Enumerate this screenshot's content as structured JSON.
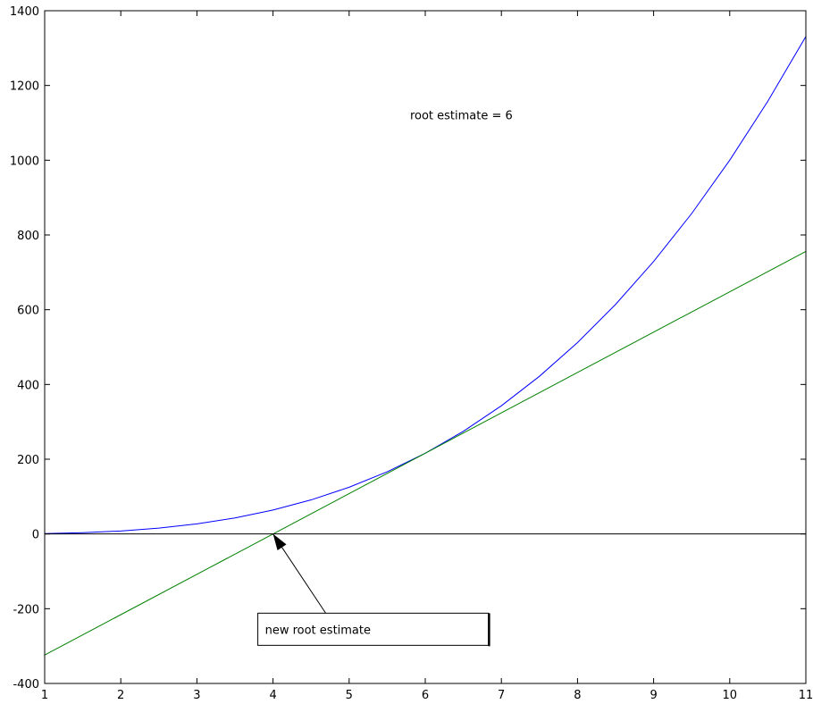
{
  "chart_data": {
    "type": "line",
    "title": "",
    "xlabel": "",
    "ylabel": "",
    "xlim": [
      1,
      11
    ],
    "ylim": [
      -400,
      1400
    ],
    "xticks": [
      1,
      2,
      3,
      4,
      5,
      6,
      7,
      8,
      9,
      10,
      11
    ],
    "yticks": [
      -400,
      -200,
      0,
      200,
      400,
      600,
      800,
      1000,
      1200,
      1400
    ],
    "grid": false,
    "legend": "none",
    "series": [
      {
        "color": "#0000ff",
        "x": [
          1,
          1.5,
          2,
          2.5,
          3,
          3.5,
          4,
          4.5,
          5,
          5.5,
          6,
          6.5,
          7,
          7.5,
          8,
          8.5,
          9,
          9.5,
          10,
          10.5,
          11
        ],
        "y": [
          1,
          3.38,
          8,
          15.63,
          27,
          42.88,
          64,
          91.13,
          125,
          166.38,
          216,
          274.63,
          343,
          421.88,
          512,
          614.13,
          729,
          857.38,
          1000,
          1157.63,
          1331
        ]
      },
      {
        "color": "#008000",
        "x": [
          1,
          11
        ],
        "y": [
          -324,
          756
        ]
      },
      {
        "color": "#000000",
        "x": [
          1,
          11
        ],
        "y": [
          0,
          0
        ]
      }
    ],
    "annotations": [
      {
        "text": "root estimate = 6",
        "x": 5.8,
        "y": 1110
      },
      {
        "text": "new root estimate",
        "box": true,
        "x": 4.0,
        "y": -255,
        "arrow_to": [
          4,
          0
        ]
      }
    ]
  }
}
